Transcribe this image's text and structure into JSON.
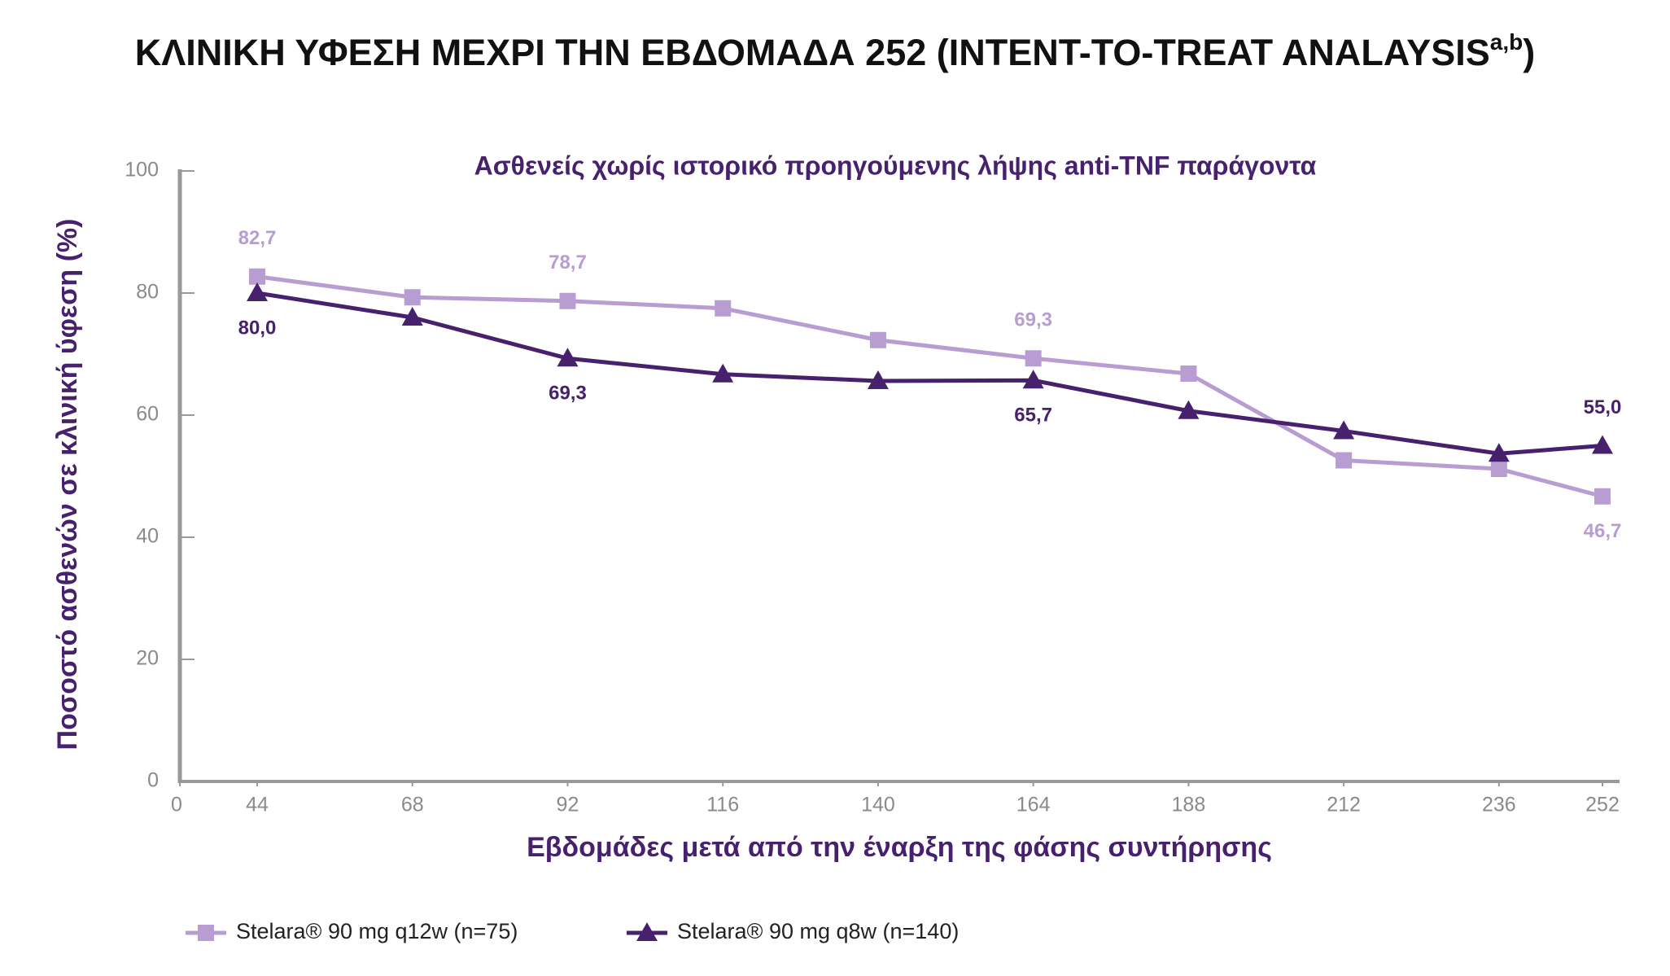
{
  "chart_data": {
    "type": "line",
    "title": [
      "ΚΛΙΝΙΚΗ ΥΦΕΣΗ ΜΕΧΡΙ ΤΗΝ ΕΒΔΟΜΑΔΑ 252 (INTENT-TO-TREAT ANALAYSIS",
      "a,b",
      ")"
    ],
    "subtitle": "Ασθενείς χωρίς ιστορικό προηγούμενης λήψης anti-TNF παράγοντα",
    "xlabel": "Εβδομάδες μετά από την έναρξη της φάσης συντήρησης",
    "ylabel": "Ποσοστό ασθενών σε κλινική ύφεση (%)",
    "x": [
      44,
      68,
      92,
      116,
      140,
      164,
      188,
      212,
      236,
      252
    ],
    "series": [
      {
        "name": "Stelara® 90 mg q12w (n=75)",
        "color": "#b79dd2",
        "marker": "square",
        "values": [
          82.7,
          79.3,
          78.7,
          77.5,
          72.3,
          69.3,
          66.8,
          52.6,
          51.2,
          46.7
        ],
        "value_labels": [
          "82,7",
          null,
          "78,7",
          null,
          null,
          "69,3",
          null,
          null,
          null,
          "46,7"
        ]
      },
      {
        "name": "Stelara® 90 mg q8w (n=140)",
        "color": "#47216e",
        "marker": "triangle",
        "values": [
          80.0,
          76.0,
          69.3,
          66.7,
          65.6,
          65.7,
          60.7,
          57.4,
          53.7,
          55.0
        ],
        "value_labels": [
          "80,0",
          null,
          "69,3",
          null,
          null,
          "65,7",
          null,
          null,
          null,
          "55,0"
        ]
      }
    ],
    "xlim": [
      0,
      252
    ],
    "xticks": [
      0,
      44,
      68,
      92,
      116,
      140,
      164,
      188,
      212,
      236,
      252
    ],
    "ylim": [
      0,
      100
    ],
    "yticks": [
      0,
      20,
      40,
      60,
      80,
      100
    ],
    "legend": "bottom-left"
  }
}
